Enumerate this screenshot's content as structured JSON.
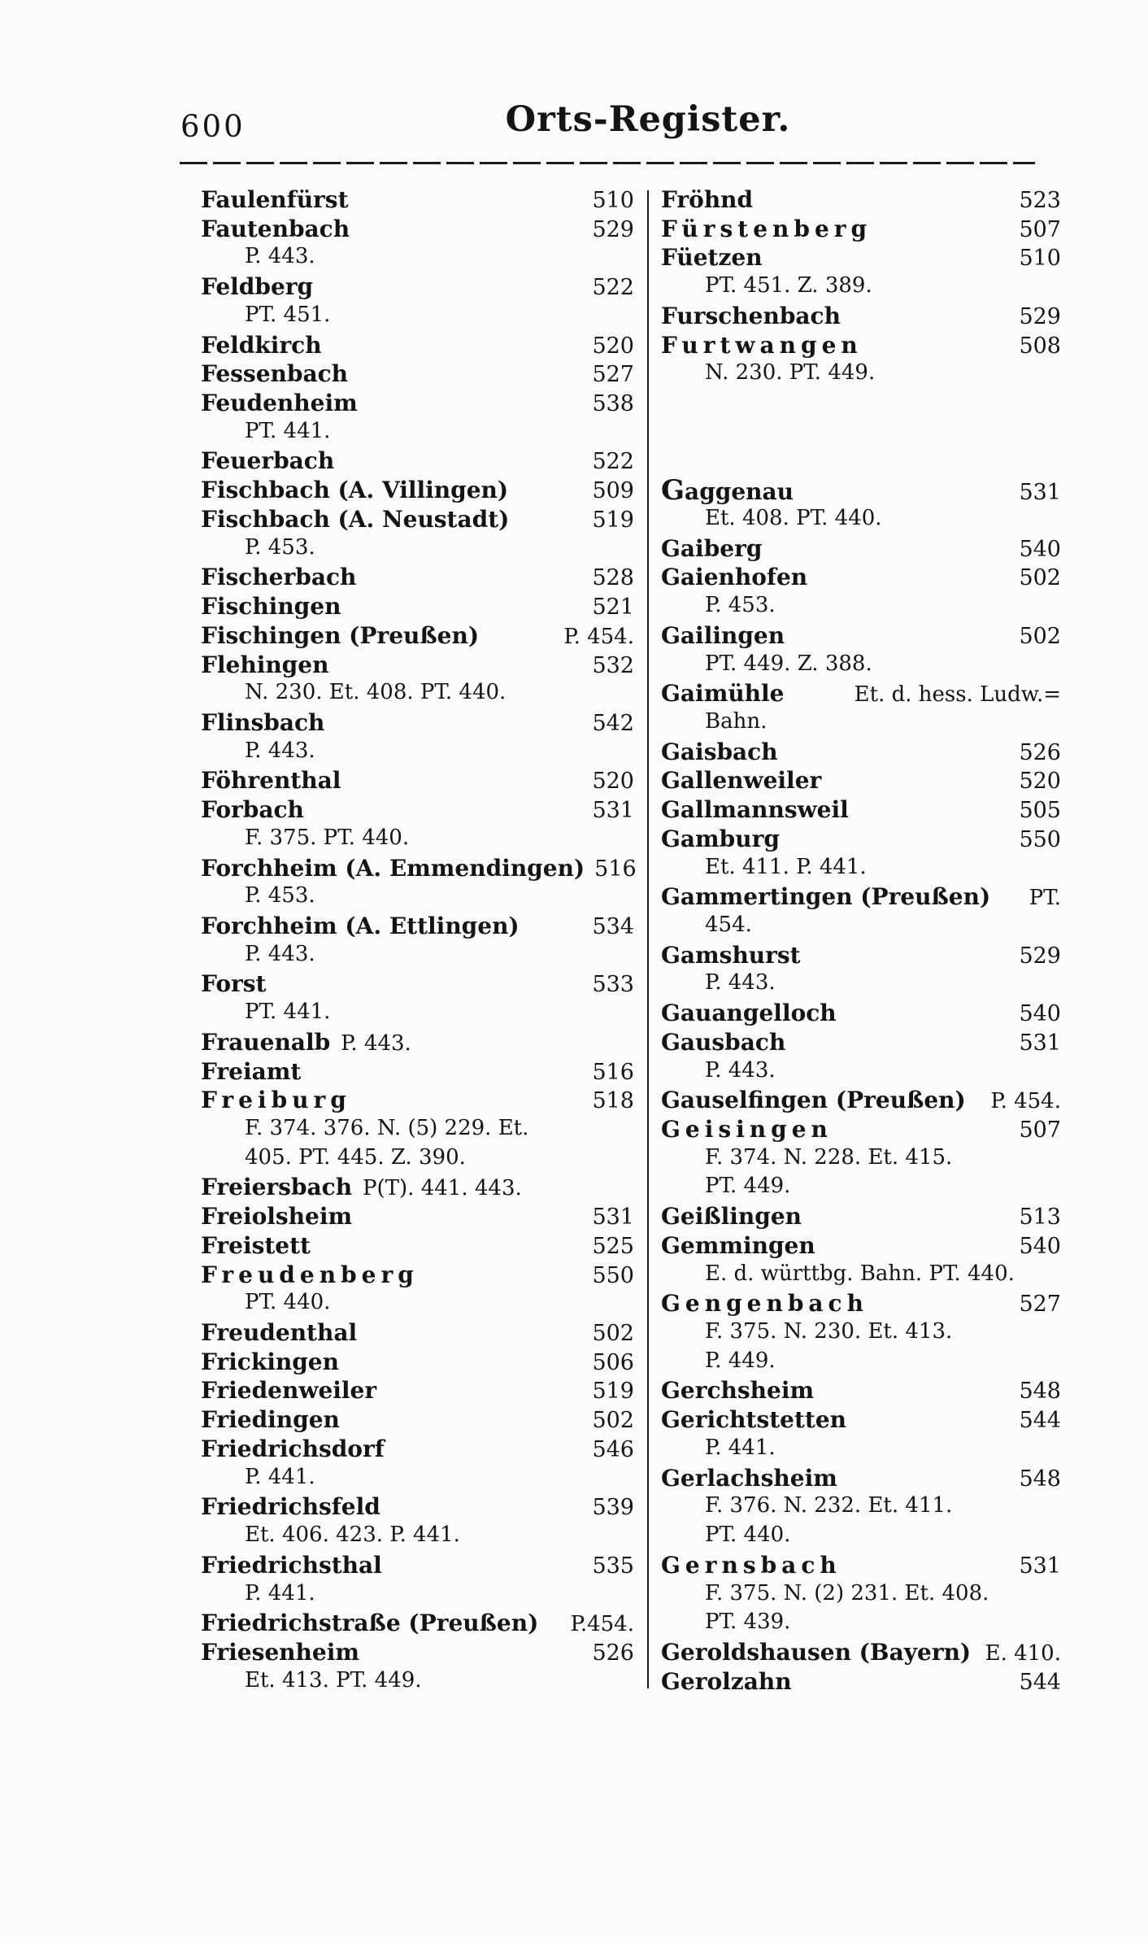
{
  "colors": {
    "ink": "#141414",
    "paper": "#fcfcfa"
  },
  "header": {
    "page_number": "600",
    "title": "Orts-Register."
  },
  "index": {
    "left": [
      {
        "type": "entry",
        "name": "Faulenfürst",
        "page": "510"
      },
      {
        "type": "entry",
        "name": "Fautenbach",
        "page": "529"
      },
      {
        "type": "ref",
        "text": "P. 443."
      },
      {
        "type": "entry",
        "name": "Feldberg",
        "page": "522"
      },
      {
        "type": "ref",
        "text": "PT. 451."
      },
      {
        "type": "entry",
        "name": "Feldkirch",
        "page": "520"
      },
      {
        "type": "entry",
        "name": "Fessenbach",
        "page": "527"
      },
      {
        "type": "entry",
        "name": "Feudenheim",
        "page": "538"
      },
      {
        "type": "ref",
        "text": "PT. 441."
      },
      {
        "type": "entry",
        "name": "Feuerbach",
        "page": "522"
      },
      {
        "type": "entry",
        "name": "Fischbach (A. Villingen)",
        "page": "509"
      },
      {
        "type": "entry",
        "name": "Fischbach (A. Neustadt)",
        "page": "519"
      },
      {
        "type": "ref",
        "text": "P. 453."
      },
      {
        "type": "entry",
        "name": "Fischerbach",
        "page": "528"
      },
      {
        "type": "entry",
        "name": "Fischingen",
        "page": "521"
      },
      {
        "type": "entry",
        "name": "Fischingen (Preußen)",
        "suffix": "P. 454.",
        "fill": true
      },
      {
        "type": "entry",
        "name": "Flehingen",
        "page": "532"
      },
      {
        "type": "ref",
        "text": "N. 230. Et. 408. PT. 440."
      },
      {
        "type": "entry",
        "name": "Flinsbach",
        "page": "542"
      },
      {
        "type": "ref",
        "text": "P. 443."
      },
      {
        "type": "entry",
        "name": "Föhrenthal",
        "page": "520"
      },
      {
        "type": "entry",
        "name": "Forbach",
        "page": "531"
      },
      {
        "type": "ref",
        "text": "F. 375. PT. 440."
      },
      {
        "type": "entry",
        "name": "Forchheim (A. Emmendingen)",
        "page": "516"
      },
      {
        "type": "ref",
        "text": "P. 453."
      },
      {
        "type": "entry",
        "name": "Forchheim (A. Ettlingen)",
        "page": "534"
      },
      {
        "type": "ref",
        "text": "P. 443."
      },
      {
        "type": "entry",
        "name": "Forst",
        "page": "533"
      },
      {
        "type": "ref",
        "text": "PT. 441."
      },
      {
        "type": "entry",
        "name": "Frauenalb",
        "suffix": "P. 443."
      },
      {
        "type": "entry",
        "name": "Freiamt",
        "page": "516"
      },
      {
        "type": "entry",
        "name": "Freiburg",
        "page": "518",
        "spaced": true
      },
      {
        "type": "ref",
        "text": "F. 374. 376. N. (5) 229. Et."
      },
      {
        "type": "ref",
        "text": "405. PT. 445. Z. 390."
      },
      {
        "type": "entry",
        "name": "Freiersbach",
        "suffix": "P(T). 441. 443."
      },
      {
        "type": "entry",
        "name": "Freiolsheim",
        "page": "531"
      },
      {
        "type": "entry",
        "name": "Freistett",
        "page": "525"
      },
      {
        "type": "entry",
        "name": "Freudenberg",
        "page": "550",
        "spaced": true
      },
      {
        "type": "ref",
        "text": "PT. 440."
      },
      {
        "type": "entry",
        "name": "Freudenthal",
        "page": "502"
      },
      {
        "type": "entry",
        "name": "Frickingen",
        "page": "506"
      },
      {
        "type": "entry",
        "name": "Friedenweiler",
        "page": "519"
      },
      {
        "type": "entry",
        "name": "Friedingen",
        "page": "502"
      },
      {
        "type": "entry",
        "name": "Friedrichsdorf",
        "page": "546"
      },
      {
        "type": "ref",
        "text": "P. 441."
      },
      {
        "type": "entry",
        "name": "Friedrichsfeld",
        "page": "539"
      },
      {
        "type": "ref",
        "text": "Et. 406. 423. P. 441."
      },
      {
        "type": "entry",
        "name": "Friedrichsthal",
        "page": "535"
      },
      {
        "type": "ref",
        "text": "P. 441."
      },
      {
        "type": "entry",
        "name": "Friedrichstraße (Preußen)",
        "suffix": "P.454.",
        "fill": true
      },
      {
        "type": "entry",
        "name": "Friesenheim",
        "page": "526"
      },
      {
        "type": "ref",
        "text": "Et. 413. PT. 449."
      }
    ],
    "right": [
      {
        "type": "entry",
        "name": "Fröhnd",
        "page": "523"
      },
      {
        "type": "entry",
        "name": "Fürstenberg",
        "page": "507",
        "spaced": true
      },
      {
        "type": "entry",
        "name": "Füetzen",
        "page": "510"
      },
      {
        "type": "ref",
        "text": "PT. 451. Z. 389."
      },
      {
        "type": "entry",
        "name": "Furschenbach",
        "page": "529"
      },
      {
        "type": "entry",
        "name": "Furtwangen",
        "page": "508",
        "spaced": true
      },
      {
        "type": "ref",
        "text": "N. 230. PT. 449."
      },
      {
        "type": "gap"
      },
      {
        "type": "gap"
      },
      {
        "type": "gap"
      },
      {
        "type": "entry",
        "name": "Gaggenau",
        "page": "531",
        "section_start": true
      },
      {
        "type": "ref",
        "text": "Et. 408. PT. 440."
      },
      {
        "type": "entry",
        "name": "Gaiberg",
        "page": "540"
      },
      {
        "type": "entry",
        "name": "Gaienhofen",
        "page": "502"
      },
      {
        "type": "ref",
        "text": "P. 453."
      },
      {
        "type": "entry",
        "name": "Gailingen",
        "page": "502"
      },
      {
        "type": "ref",
        "text": "PT. 449. Z. 388."
      },
      {
        "type": "entry",
        "name": "Gaimühle",
        "suffix": "Et. d. hess. Ludw.=",
        "fill": true
      },
      {
        "type": "ref",
        "text": "Bahn."
      },
      {
        "type": "entry",
        "name": "Gaisbach",
        "page": "526"
      },
      {
        "type": "entry",
        "name": "Gallenweiler",
        "page": "520"
      },
      {
        "type": "entry",
        "name": "Gallmannsweil",
        "page": "505"
      },
      {
        "type": "entry",
        "name": "Gamburg",
        "page": "550"
      },
      {
        "type": "ref",
        "text": "Et. 411. P. 441."
      },
      {
        "type": "entry",
        "name": "Gammertingen (Preußen)",
        "suffix": "PT.",
        "fill": true
      },
      {
        "type": "ref",
        "text": "454."
      },
      {
        "type": "entry",
        "name": "Gamshurst",
        "page": "529"
      },
      {
        "type": "ref",
        "text": "P. 443."
      },
      {
        "type": "entry",
        "name": "Gauangelloch",
        "page": "540"
      },
      {
        "type": "entry",
        "name": "Gausbach",
        "page": "531"
      },
      {
        "type": "ref",
        "text": "P. 443."
      },
      {
        "type": "entry",
        "name": "Gauselfingen (Preußen)",
        "suffix": "P. 454.",
        "fill": true
      },
      {
        "type": "entry",
        "name": "Geisingen",
        "page": "507",
        "spaced": true
      },
      {
        "type": "ref",
        "text": "F. 374. N. 228. Et. 415."
      },
      {
        "type": "ref",
        "text": "PT. 449."
      },
      {
        "type": "entry",
        "name": "Geißlingen",
        "page": "513"
      },
      {
        "type": "entry",
        "name": "Gemmingen",
        "page": "540"
      },
      {
        "type": "ref",
        "text": "E. d. württbg. Bahn. PT. 440."
      },
      {
        "type": "entry",
        "name": "Gengenbach",
        "page": "527",
        "spaced": true
      },
      {
        "type": "ref",
        "text": "F. 375. N. 230. Et. 413."
      },
      {
        "type": "ref",
        "text": "P. 449."
      },
      {
        "type": "entry",
        "name": "Gerchsheim",
        "page": "548"
      },
      {
        "type": "entry",
        "name": "Gerichtstetten",
        "page": "544"
      },
      {
        "type": "ref",
        "text": "P. 441."
      },
      {
        "type": "entry",
        "name": "Gerlachsheim",
        "page": "548"
      },
      {
        "type": "ref",
        "text": "F. 376. N. 232. Et. 411."
      },
      {
        "type": "ref",
        "text": "PT. 440."
      },
      {
        "type": "entry",
        "name": "Gernsbach",
        "page": "531",
        "spaced": true
      },
      {
        "type": "ref",
        "text": "F. 375. N. (2) 231. Et. 408."
      },
      {
        "type": "ref",
        "text": "PT. 439."
      },
      {
        "type": "entry",
        "name": "Geroldshausen (Bayern)",
        "suffix": "E. 410.",
        "fill": true
      },
      {
        "type": "entry",
        "name": "Gerolzahn",
        "page": "544"
      }
    ]
  }
}
